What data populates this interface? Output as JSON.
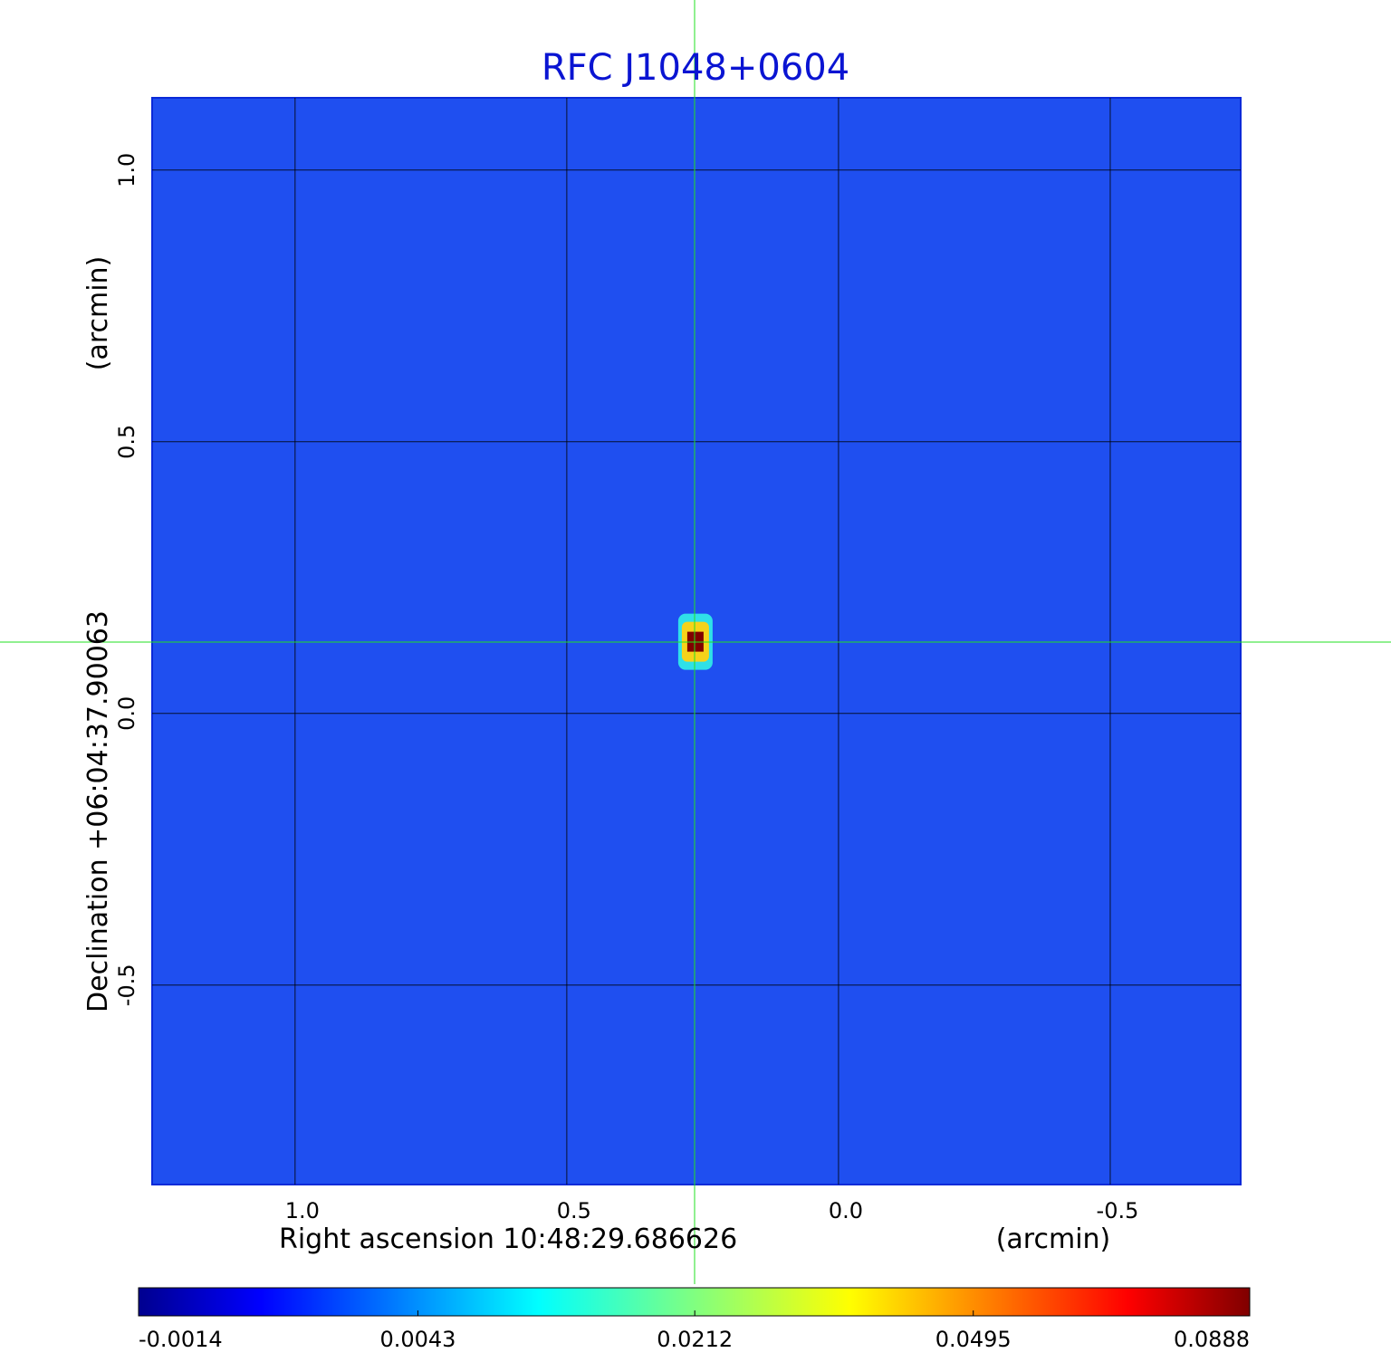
{
  "chart_data": {
    "type": "image",
    "title": "RFC J1048+0604",
    "title_color": "#0a14d2",
    "x_label": "Right ascension  10:48:29.686626",
    "x_unit": "(arcmin)",
    "y_label": "Declination  +06:04:37.90063",
    "y_unit": "(arcmin)",
    "xlim": [
      1.263,
      -0.74
    ],
    "ylim": [
      -0.867,
      1.133
    ],
    "xticks": [
      {
        "value": 1,
        "label": "1.0"
      },
      0.5,
      {
        "value": 0,
        "label": "0.0"
      },
      -0.5
    ],
    "yticks": [
      {
        "value": 1,
        "label": "1.0"
      },
      0.5,
      {
        "value": 0,
        "label": "0.0"
      },
      -0.5
    ],
    "grid": true,
    "background_color": "#1f4ff0",
    "colorbar": {
      "clim": [
        -0.0014,
        0.0888
      ],
      "scale": "sqrt",
      "colormap": "jet",
      "ticks": [
        -0.0014,
        0.0043,
        0.0212,
        0.0495,
        0.0888
      ]
    },
    "peak": {
      "x": 0.265,
      "y": 0.132,
      "value": 0.0888
    }
  }
}
